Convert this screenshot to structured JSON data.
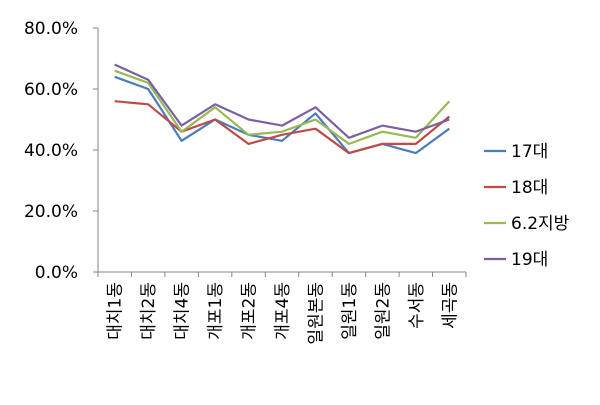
{
  "chart_data": {
    "type": "line",
    "title": "",
    "xlabel": "",
    "ylabel": "",
    "categories": [
      "대치1동",
      "대치2동",
      "대치4동",
      "개포1동",
      "개포2동",
      "개포4동",
      "일원본동",
      "일원1동",
      "일원2동",
      "수서동",
      "세곡동"
    ],
    "y_tick_labels": [
      "0.0%",
      "20.0%",
      "40.0%",
      "60.0%",
      "80.0%"
    ],
    "ylim": [
      0,
      80
    ],
    "y_unit": "%",
    "grid": false,
    "legend_position": "right",
    "series": [
      {
        "name": "17대",
        "color": "#4a7ebb",
        "values": [
          64,
          60,
          43,
          50,
          45,
          43,
          52,
          39,
          42,
          39,
          47
        ]
      },
      {
        "name": "18대",
        "color": "#be4b48",
        "values": [
          56,
          55,
          46,
          50,
          42,
          45,
          47,
          39,
          42,
          42,
          51
        ]
      },
      {
        "name": "6.2지방",
        "color": "#98b954",
        "values": [
          66,
          62,
          46,
          54,
          45,
          46,
          50,
          42,
          46,
          44,
          56
        ]
      },
      {
        "name": "19대",
        "color": "#7d60a0",
        "values": [
          68,
          63,
          48,
          55,
          50,
          48,
          54,
          44,
          48,
          46,
          50
        ]
      }
    ]
  }
}
